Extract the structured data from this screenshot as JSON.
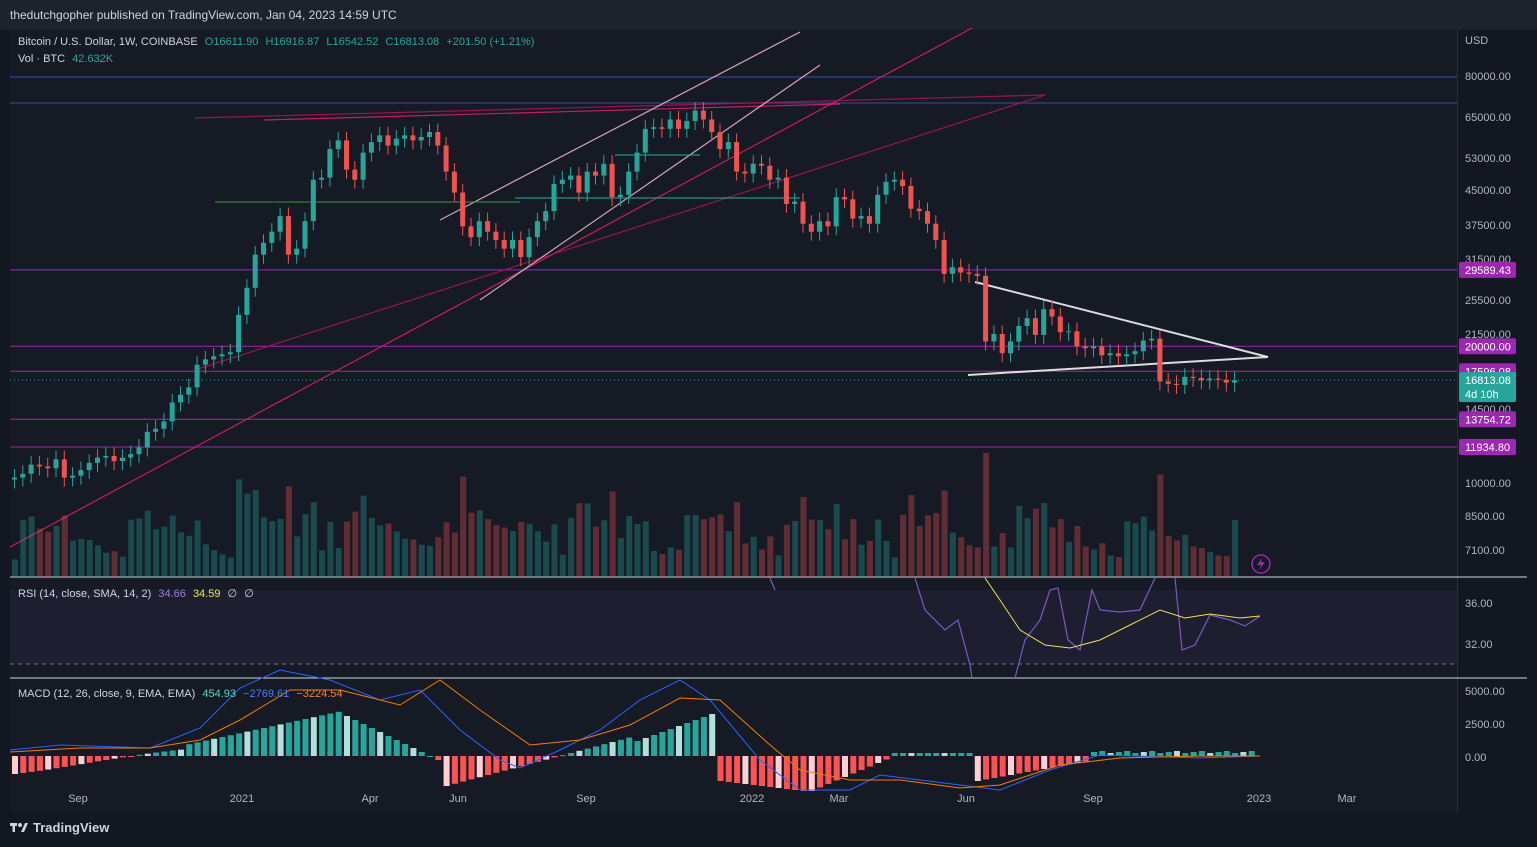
{
  "header": {
    "published": "thedutchgopher published on TradingView.com, Jan 04, 2023 14:59 UTC"
  },
  "legend": {
    "symbol": "Bitcoin / U.S. Dollar, 1W, COINBASE",
    "open": "O16611.90",
    "high": "H16916.87",
    "low": "L16542.52",
    "close": "C16813.08",
    "change": "+201.50 (+1.21%)",
    "vol_label": "Vol · BTC",
    "vol_value": "42.632K",
    "rsi_label": "RSI (14, close, SMA, 14, 2)",
    "rsi_value": "34.66",
    "rsi_sma": "34.59",
    "rsi_sym1": "∅",
    "rsi_sym2": "∅",
    "macd_label": "MACD (12, 26, close, 9, EMA, EMA)",
    "macd_hist": "454.93",
    "macd_line": "−2769.61",
    "macd_signal": "−3224.54"
  },
  "price_axis": {
    "currency": "USD",
    "ticks": [
      "80000.00",
      "65000.00",
      "53000.00",
      "45000.00",
      "37500.00",
      "31500.00",
      "25500.00",
      "21500.00",
      "14500.00",
      "10000.00",
      "8500.00",
      "7100.00"
    ],
    "rsi_ticks": [
      "36.00",
      "32.00"
    ],
    "macd_ticks": [
      "5000.00",
      "2500.00",
      "0.00"
    ]
  },
  "badges": [
    {
      "label": "29589.43",
      "color": "#9c27b0"
    },
    {
      "label": "20000.00",
      "color": "#9c27b0"
    },
    {
      "label": "17596.08",
      "color": "#9c27b0"
    },
    {
      "label": "13754.72",
      "color": "#9c27b0"
    },
    {
      "label": "11934.80",
      "color": "#9c27b0"
    }
  ],
  "last_price": {
    "label": "16813.08",
    "countdown": "4d 10h",
    "color": "#26a69a"
  },
  "time_axis": {
    "labels": [
      "Sep",
      "2021",
      "Apr",
      "Jun",
      "Sep",
      "2022",
      "Mar",
      "Jun",
      "Sep",
      "2023",
      "Mar"
    ]
  },
  "footer": {
    "brand": "TradingView"
  },
  "colors": {
    "up": "#26a69a",
    "down": "#ef5350",
    "support": "#9c27b0",
    "background": "#161a25"
  },
  "chart_data": [
    {
      "type": "candlestick",
      "title": "Bitcoin / U.S. Dollar, 1W, COINBASE",
      "scale": "log",
      "ylim": [
        5800,
        100000
      ],
      "y_ticks": [
        80000,
        65000,
        53000,
        45000,
        37500,
        31500,
        25500,
        21500,
        14500,
        10000,
        8500,
        7100
      ],
      "x_labels": [
        "Sep",
        "2021",
        "Apr",
        "Jun",
        "Sep",
        "2022",
        "Mar",
        "Jun",
        "Sep",
        "2023",
        "Mar"
      ],
      "closes": [
        10200,
        10400,
        10900,
        10800,
        10700,
        11200,
        10200,
        10300,
        10600,
        11000,
        11300,
        11400,
        11100,
        11300,
        11500,
        11900,
        12900,
        13100,
        13600,
        15000,
        15600,
        16200,
        18200,
        18700,
        19000,
        19200,
        19400,
        23500,
        27000,
        32000,
        34000,
        36000,
        39000,
        32000,
        33000,
        38000,
        47000,
        47500,
        55000,
        57500,
        49500,
        47000,
        54000,
        57000,
        59000,
        56000,
        58000,
        59000,
        57500,
        58500,
        60000,
        56000,
        49000,
        44000,
        37000,
        35000,
        38000,
        36000,
        34500,
        33000,
        34500,
        31600,
        35000,
        38000,
        40000,
        46000,
        47000,
        48000,
        44000,
        49000,
        48000,
        51000,
        43000,
        43500,
        49000,
        54000,
        61000,
        61500,
        61000,
        64000,
        61000,
        63500,
        67000,
        64000,
        60000,
        55000,
        57000,
        49000,
        48500,
        51000,
        50500,
        47000,
        47500,
        41500,
        42000,
        37500,
        36000,
        38000,
        37000,
        43000,
        42500,
        38500,
        39000,
        37500,
        43500,
        46500,
        47000,
        45500,
        40500,
        40000,
        37500,
        34500,
        29000,
        30000,
        29200,
        29000,
        28700,
        20500,
        21300,
        19300,
        20500,
        22200,
        23100,
        21200,
        24200,
        23300,
        21500,
        21600,
        20000,
        19800,
        20000,
        19100,
        19300,
        19000,
        19200,
        19500,
        20600,
        20800,
        16700,
        16500,
        16400,
        17100,
        17000,
        16800,
        16950,
        16850,
        16600,
        16813
      ],
      "support_lines": [
        29589.43,
        20000.0,
        17596.08,
        13754.72,
        11934.8
      ],
      "last": 16813.08,
      "last_candle": {
        "open": 16611.9,
        "high": 16916.87,
        "low": 16542.52,
        "close": 16813.08,
        "change": "+201.50 (+1.21%)"
      }
    },
    {
      "type": "bar",
      "title": "Vol · BTC",
      "last_value": "42.632K"
    },
    {
      "type": "line",
      "title": "RSI (14, close, SMA, 14, 2)",
      "series": [
        {
          "name": "RSI",
          "last": 34.66,
          "color": "#7e57c2"
        },
        {
          "name": "SMA",
          "last": 34.59,
          "color": "#f4e04d"
        }
      ],
      "y_ticks": [
        36.0,
        32.0
      ]
    },
    {
      "type": "line",
      "title": "MACD (12, 26, close, 9, EMA, EMA)",
      "series": [
        {
          "name": "Histogram",
          "last": 454.93,
          "color": "#26a69a"
        },
        {
          "name": "MACD",
          "last": -2769.61,
          "color": "#2962ff"
        },
        {
          "name": "Signal",
          "last": -3224.54,
          "color": "#f57c00"
        }
      ],
      "y_ticks": [
        5000.0,
        2500.0,
        0.0
      ]
    }
  ]
}
